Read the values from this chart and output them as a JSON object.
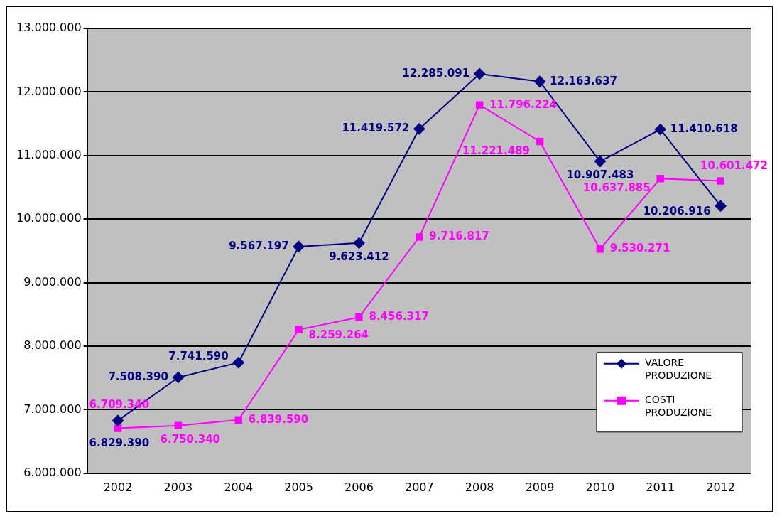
{
  "chart_data": {
    "type": "line",
    "categories": [
      "2002",
      "2003",
      "2004",
      "2005",
      "2006",
      "2007",
      "2008",
      "2009",
      "2010",
      "2011",
      "2012"
    ],
    "series": [
      {
        "name": "VALORE PRODUZIONE",
        "color": "#000080",
        "marker": "diamond",
        "values": [
          6829390,
          7508390,
          7741590,
          9567197,
          9623412,
          11419572,
          12285091,
          12163637,
          10907483,
          11410618,
          10206916
        ],
        "value_labels": [
          "6.829.390",
          "7.508.390",
          "7.741.590",
          "9.567.197",
          "9.623.412",
          "11.419.572",
          "12.285.091",
          "12.163.637",
          "10.907.483",
          "11.410.618",
          "10.206.916"
        ]
      },
      {
        "name": "COSTI PRODUZIONE",
        "color": "#ff00ff",
        "marker": "square",
        "values": [
          6709340,
          6750340,
          6839590,
          8259264,
          8456317,
          9716817,
          11796224,
          11221489,
          9530271,
          10637885,
          10601472
        ],
        "value_labels": [
          "6.709.340",
          "6.750.340",
          "6.839.590",
          "8.259.264",
          "8.456.317",
          "9.716.817",
          "11.796.224",
          "11.221.489",
          "9.530.271",
          "10.637.885",
          "10.601.472"
        ]
      }
    ],
    "ylim": [
      6000000,
      13000000
    ],
    "yticks": [
      {
        "value": 6000000,
        "label": "6.000.000"
      },
      {
        "value": 7000000,
        "label": "7.000.000"
      },
      {
        "value": 8000000,
        "label": "8.000.000"
      },
      {
        "value": 9000000,
        "label": "9.000.000"
      },
      {
        "value": 10000000,
        "label": "10.000.000"
      },
      {
        "value": 11000000,
        "label": "11.000.000"
      },
      {
        "value": 12000000,
        "label": "12.000.000"
      },
      {
        "value": 13000000,
        "label": "13.000.000"
      }
    ],
    "grid": "y",
    "legend": "bottom right",
    "line_style": "solid"
  }
}
